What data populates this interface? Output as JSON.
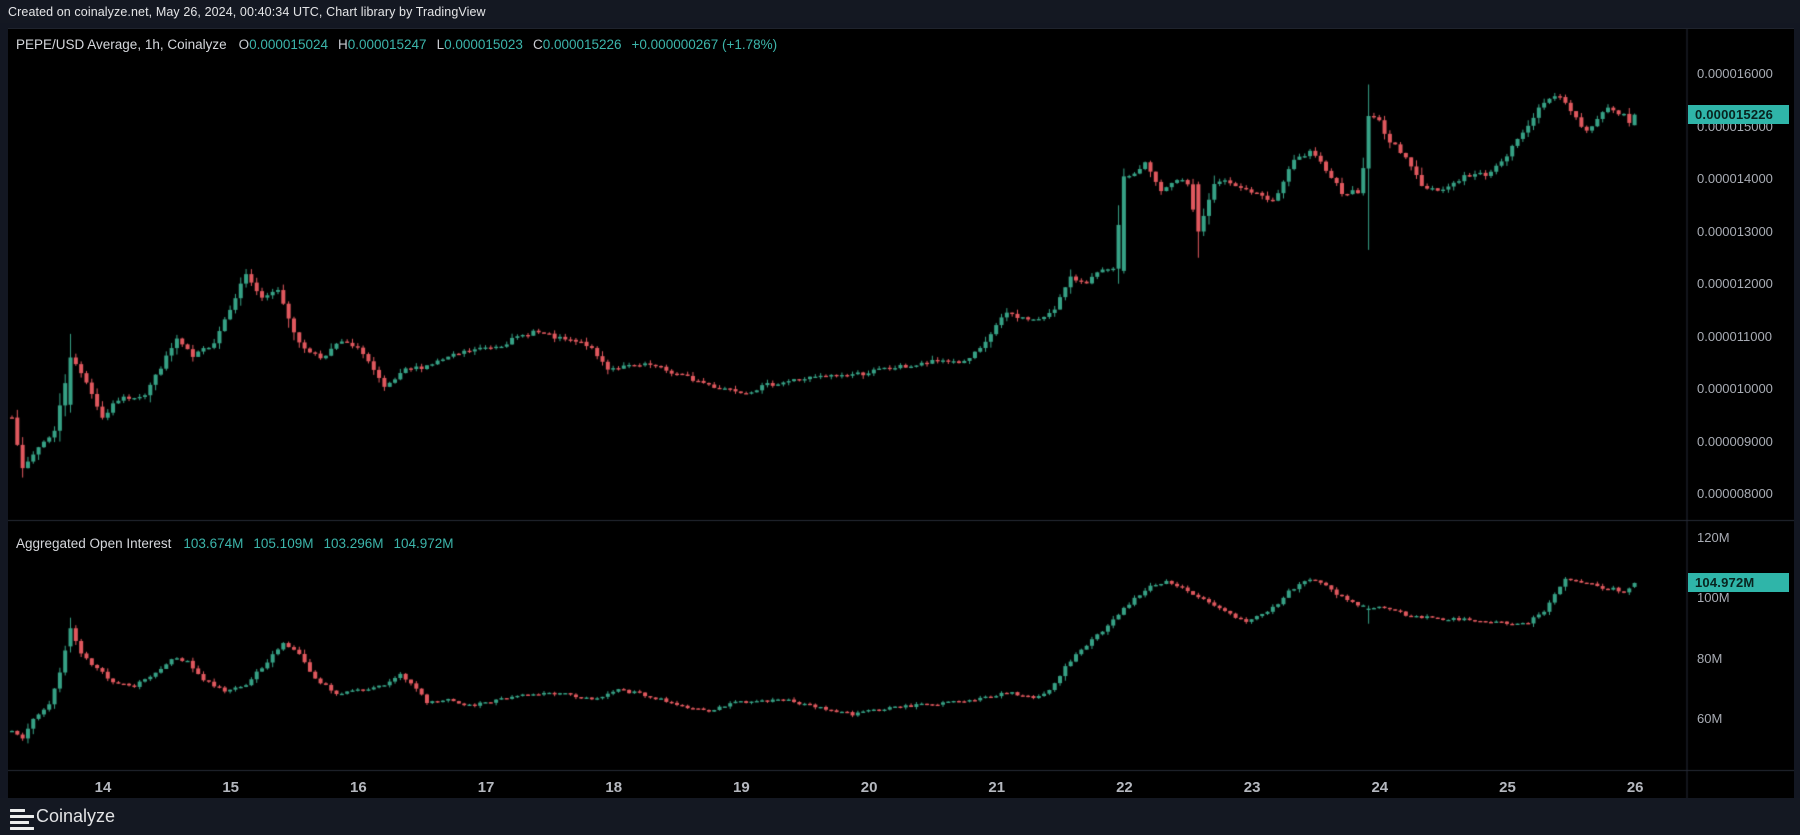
{
  "top_bar": {
    "text": "Created on coinalyze.net, May 26, 2024, 00:40:34 UTC, Chart library by TradingView"
  },
  "bottom_bar": {
    "brand": "Coinalyze"
  },
  "price_pane": {
    "legend_title": "PEPE/USD Average, 1h, Coinalyze",
    "ohlc": {
      "o_label": "O",
      "o": "0.000015024",
      "h_label": "H",
      "h": "0.000015247",
      "l_label": "L",
      "l": "0.000015023",
      "c_label": "C",
      "c": "0.000015226",
      "change": "+0.000000267 (+1.78%)"
    },
    "price_label": "0.000015226",
    "ticks": [
      {
        "label": "0.000016000",
        "value": 16.0
      },
      {
        "label": "0.000015000",
        "value": 15.0
      },
      {
        "label": "0.000014000",
        "value": 14.0
      },
      {
        "label": "0.000013000",
        "value": 13.0
      },
      {
        "label": "0.000012000",
        "value": 12.0
      },
      {
        "label": "0.000011000",
        "value": 11.0
      },
      {
        "label": "0.000010000",
        "value": 10.0
      },
      {
        "label": "0.000009000",
        "value": 9.0
      },
      {
        "label": "0.000008000",
        "value": 8.0
      }
    ]
  },
  "oi_pane": {
    "legend_title": "Aggregated Open Interest",
    "values": [
      "103.674M",
      "105.109M",
      "103.296M",
      "104.972M"
    ],
    "value_label": "104.972M",
    "ticks": [
      {
        "label": "120M",
        "value": 120
      },
      {
        "label": "100M",
        "value": 100
      },
      {
        "label": "80M",
        "value": 80
      },
      {
        "label": "60M",
        "value": 60
      }
    ]
  },
  "time_axis": {
    "labels": [
      {
        "text": "14",
        "day": 14
      },
      {
        "text": "15",
        "day": 15
      },
      {
        "text": "16",
        "day": 16
      },
      {
        "text": "17",
        "day": 17
      },
      {
        "text": "18",
        "day": 18
      },
      {
        "text": "19",
        "day": 19
      },
      {
        "text": "20",
        "day": 20
      },
      {
        "text": "21",
        "day": 21
      },
      {
        "text": "22",
        "day": 22
      },
      {
        "text": "23",
        "day": 23
      },
      {
        "text": "24",
        "day": 24
      },
      {
        "text": "25",
        "day": 25
      },
      {
        "text": "26",
        "day": 26
      }
    ]
  },
  "colors": {
    "up": "#36a185",
    "down": "#e0585e",
    "accent_teal": "#3cb5ab",
    "tag_bg": "#2fb5a9",
    "tag_text": "#08231f",
    "axis_line": "#262b36",
    "chart_bg": "#000000",
    "bar_bg": "#141822",
    "text_dim": "#a8acb4",
    "text_bright": "#d5d7dc",
    "day_label": "#b5b8bf"
  },
  "chart_data": [
    {
      "pane": "price",
      "type": "candlestick",
      "title": "PEPE/USD Average, 1h, Coinalyze",
      "interval": "1h",
      "count": 306,
      "x_range": "May 13 ~07:00 UTC to May 26 ~04:00 UTC, hourly candles",
      "x_axis_labels": [
        14,
        15,
        16,
        17,
        18,
        19,
        20,
        21,
        22,
        23,
        24,
        25,
        26
      ],
      "y_axis_ticks_usd": [
        1.6e-05,
        1.5e-05,
        1.4e-05,
        1.3e-05,
        1.2e-05,
        1.1e-05,
        1e-05,
        9e-06,
        8e-06
      ],
      "ylim_usd": [
        7.7e-06,
        1.64e-05
      ],
      "grid": "off",
      "legend_position": "top-left",
      "last_candle_usd": {
        "open": 1.5024e-05,
        "high": 1.5247e-05,
        "low": 1.5023e-05,
        "close": 1.5226e-05,
        "change": "+0.000000267",
        "change_pct": "+1.78%"
      },
      "anchors_note": "close-path key points read from chart: [hour_index, price in 1e-6 USD]",
      "anchors": [
        [
          0,
          9.5
        ],
        [
          2,
          8.45
        ],
        [
          5,
          8.9
        ],
        [
          8,
          9.2
        ],
        [
          11,
          10.6
        ],
        [
          14,
          10.15
        ],
        [
          17,
          9.45
        ],
        [
          20,
          9.8
        ],
        [
          25,
          9.9
        ],
        [
          31,
          10.95
        ],
        [
          34,
          10.6
        ],
        [
          38,
          10.9
        ],
        [
          44,
          12.2
        ],
        [
          47,
          11.7
        ],
        [
          50,
          11.9
        ],
        [
          54,
          10.85
        ],
        [
          58,
          10.6
        ],
        [
          62,
          10.9
        ],
        [
          66,
          10.7
        ],
        [
          70,
          10.0
        ],
        [
          74,
          10.35
        ],
        [
          78,
          10.45
        ],
        [
          85,
          10.7
        ],
        [
          92,
          10.85
        ],
        [
          98,
          11.1
        ],
        [
          103,
          10.95
        ],
        [
          108,
          10.85
        ],
        [
          112,
          10.4
        ],
        [
          120,
          10.45
        ],
        [
          126,
          10.25
        ],
        [
          132,
          10.05
        ],
        [
          138,
          9.95
        ],
        [
          143,
          10.1
        ],
        [
          149,
          10.2
        ],
        [
          155,
          10.25
        ],
        [
          160,
          10.3
        ],
        [
          165,
          10.4
        ],
        [
          170,
          10.45
        ],
        [
          175,
          10.55
        ],
        [
          179,
          10.5
        ],
        [
          182,
          10.75
        ],
        [
          185,
          11.2
        ],
        [
          187,
          11.45
        ],
        [
          190,
          11.35
        ],
        [
          193,
          11.3
        ],
        [
          196,
          11.55
        ],
        [
          199,
          12.1
        ],
        [
          202,
          12.05
        ],
        [
          205,
          12.25
        ],
        [
          207,
          12.25
        ],
        [
          209,
          14.05
        ],
        [
          211,
          14.1
        ],
        [
          213,
          14.3
        ],
        [
          216,
          13.75
        ],
        [
          219,
          14.0
        ],
        [
          221,
          13.9
        ],
        [
          223,
          13.0
        ],
        [
          226,
          13.9
        ],
        [
          229,
          13.95
        ],
        [
          233,
          13.75
        ],
        [
          237,
          13.55
        ],
        [
          241,
          14.35
        ],
        [
          244,
          14.5
        ],
        [
          247,
          14.2
        ],
        [
          250,
          13.75
        ],
        [
          253,
          13.75
        ],
        [
          254,
          14.2
        ],
        [
          255,
          15.2
        ],
        [
          257,
          15.1
        ],
        [
          259,
          14.7
        ],
        [
          262,
          14.45
        ],
        [
          265,
          13.85
        ],
        [
          269,
          13.8
        ],
        [
          273,
          14.05
        ],
        [
          277,
          14.1
        ],
        [
          280,
          14.3
        ],
        [
          283,
          14.75
        ],
        [
          286,
          15.2
        ],
        [
          289,
          15.55
        ],
        [
          291,
          15.6
        ],
        [
          294,
          15.15
        ],
        [
          296,
          14.9
        ],
        [
          299,
          15.3
        ],
        [
          301,
          15.35
        ],
        [
          303,
          15.2
        ],
        [
          304,
          15.03
        ],
        [
          305,
          15.226
        ]
      ],
      "special_candles": {
        "11": [
          9.7,
          11.05,
          9.55,
          10.6
        ],
        "209": [
          12.25,
          14.2,
          12.2,
          14.05
        ],
        "223": [
          13.9,
          13.95,
          12.5,
          13.0
        ],
        "255": [
          14.2,
          15.8,
          12.65,
          15.2
        ],
        "305": [
          15.024,
          15.247,
          15.023,
          15.226
        ]
      }
    },
    {
      "pane": "open_interest",
      "type": "candlestick",
      "title": "Aggregated Open Interest",
      "interval": "1h",
      "count": 306,
      "unit": "millions USD",
      "y_axis_ticks": [
        120,
        100,
        80,
        60
      ],
      "ylim": [
        50,
        124
      ],
      "grid": "off",
      "legend_position": "top-left",
      "last_candle": {
        "open": 103.674,
        "high": 105.109,
        "low": 103.296,
        "close": 104.972
      },
      "anchors_note": "close-path key points read from chart: [hour_index, open interest in M]",
      "anchors": [
        [
          0,
          56
        ],
        [
          2,
          54
        ],
        [
          4,
          60.5
        ],
        [
          7,
          65
        ],
        [
          9,
          75
        ],
        [
          11,
          90
        ],
        [
          13,
          82
        ],
        [
          15,
          78
        ],
        [
          17,
          75.5
        ],
        [
          19,
          72
        ],
        [
          23,
          71
        ],
        [
          27,
          75.5
        ],
        [
          30,
          80
        ],
        [
          33,
          79
        ],
        [
          36,
          73
        ],
        [
          40,
          69.5
        ],
        [
          44,
          71.5
        ],
        [
          48,
          79
        ],
        [
          51,
          85.5
        ],
        [
          54,
          81
        ],
        [
          57,
          73.5
        ],
        [
          61,
          68.5
        ],
        [
          66,
          69.5
        ],
        [
          70,
          71
        ],
        [
          73,
          74.5
        ],
        [
          76,
          70
        ],
        [
          78,
          65.5
        ],
        [
          82,
          66.5
        ],
        [
          86,
          64.5
        ],
        [
          90,
          65.5
        ],
        [
          95,
          68
        ],
        [
          100,
          68.5
        ],
        [
          105,
          68
        ],
        [
          110,
          66.5
        ],
        [
          114,
          69.5
        ],
        [
          118,
          68.5
        ],
        [
          123,
          66
        ],
        [
          128,
          63.5
        ],
        [
          131,
          62
        ],
        [
          135,
          65.5
        ],
        [
          140,
          65.8
        ],
        [
          145,
          66.3
        ],
        [
          150,
          64.5
        ],
        [
          154,
          62.8
        ],
        [
          158,
          61.5
        ],
        [
          162,
          63
        ],
        [
          167,
          64.2
        ],
        [
          172,
          64.8
        ],
        [
          177,
          65.5
        ],
        [
          181,
          66.5
        ],
        [
          185,
          68
        ],
        [
          188,
          68.5
        ],
        [
          192,
          67
        ],
        [
          195,
          69.5
        ],
        [
          198,
          77
        ],
        [
          200,
          81
        ],
        [
          203,
          86
        ],
        [
          206,
          91
        ],
        [
          209,
          96.5
        ],
        [
          211,
          100
        ],
        [
          214,
          104
        ],
        [
          217,
          105.5
        ],
        [
          220,
          103.5
        ],
        [
          223,
          100.5
        ],
        [
          226,
          97
        ],
        [
          229,
          94.5
        ],
        [
          232,
          92.5
        ],
        [
          235,
          95
        ],
        [
          238,
          97.5
        ],
        [
          240,
          102
        ],
        [
          243,
          106
        ],
        [
          246,
          105
        ],
        [
          249,
          101.5
        ],
        [
          252,
          98.5
        ],
        [
          255,
          96.5
        ],
        [
          258,
          97
        ],
        [
          262,
          94.5
        ],
        [
          266,
          93.5
        ],
        [
          271,
          93
        ],
        [
          276,
          92.5
        ],
        [
          281,
          91.5
        ],
        [
          285,
          92
        ],
        [
          288,
          95.5
        ],
        [
          290,
          101
        ],
        [
          292,
          106.5
        ],
        [
          294,
          106
        ],
        [
          296,
          105
        ],
        [
          299,
          103.5
        ],
        [
          301,
          103
        ],
        [
          303,
          101.5
        ],
        [
          304,
          103.3
        ],
        [
          305,
          104.972
        ]
      ],
      "special_candles": {
        "11": [
          84,
          93.5,
          82,
          90
        ],
        "255": [
          96.5,
          97.5,
          91.5,
          96.5
        ],
        "305": [
          103.674,
          105.109,
          103.296,
          104.972
        ]
      }
    }
  ]
}
